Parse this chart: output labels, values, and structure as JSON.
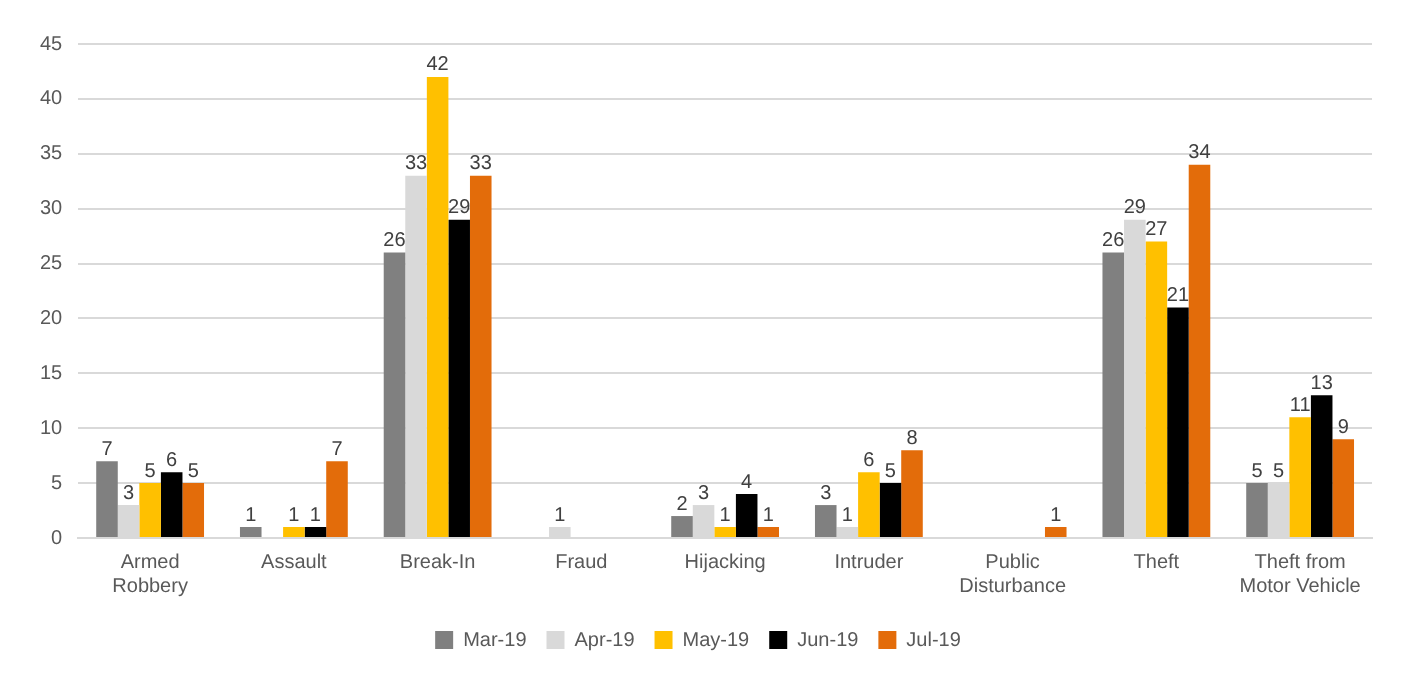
{
  "chart_data": {
    "type": "bar",
    "categories": [
      "Armed Robbery",
      "Assault",
      "Break-In",
      "Fraud",
      "Hijacking",
      "Intruder",
      "Public Disturbance",
      "Theft",
      "Theft from Motor Vehicle"
    ],
    "series": [
      {
        "name": "Mar-19",
        "color": "#808080",
        "values": [
          7,
          1,
          26,
          null,
          2,
          3,
          null,
          26,
          5
        ]
      },
      {
        "name": "Apr-19",
        "color": "#d9d9d9",
        "values": [
          3,
          null,
          33,
          1,
          3,
          1,
          null,
          29,
          5
        ]
      },
      {
        "name": "May-19",
        "color": "#ffc000",
        "values": [
          5,
          1,
          42,
          null,
          1,
          6,
          null,
          27,
          11
        ]
      },
      {
        "name": "Jun-19",
        "color": "#000000",
        "values": [
          6,
          1,
          29,
          null,
          4,
          5,
          null,
          21,
          13
        ]
      },
      {
        "name": "Jul-19",
        "color": "#e36c0a",
        "values": [
          5,
          7,
          33,
          null,
          1,
          8,
          1,
          34,
          9
        ]
      }
    ],
    "ylim": [
      0,
      45
    ],
    "yticks": [
      0,
      5,
      10,
      15,
      20,
      25,
      30,
      35,
      40,
      45
    ],
    "grid": "y",
    "legend": "bottom",
    "data_labels": true
  }
}
